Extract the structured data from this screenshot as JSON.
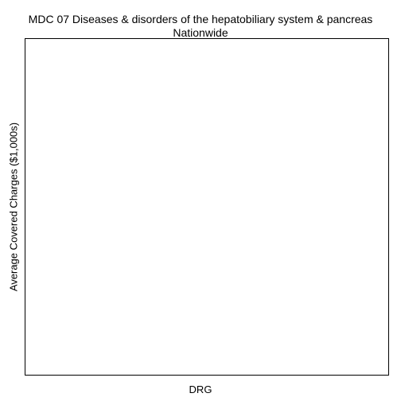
{
  "chart_data": {
    "type": "scatter",
    "title": "MDC 07 Diseases & disorders of the hepatobiliary system & pancreas",
    "subtitle": "Nationwide",
    "xlabel": "DRG",
    "ylabel": "Average Covered Charges ($1,000s)",
    "series": [],
    "grid": false,
    "legend": "none"
  }
}
